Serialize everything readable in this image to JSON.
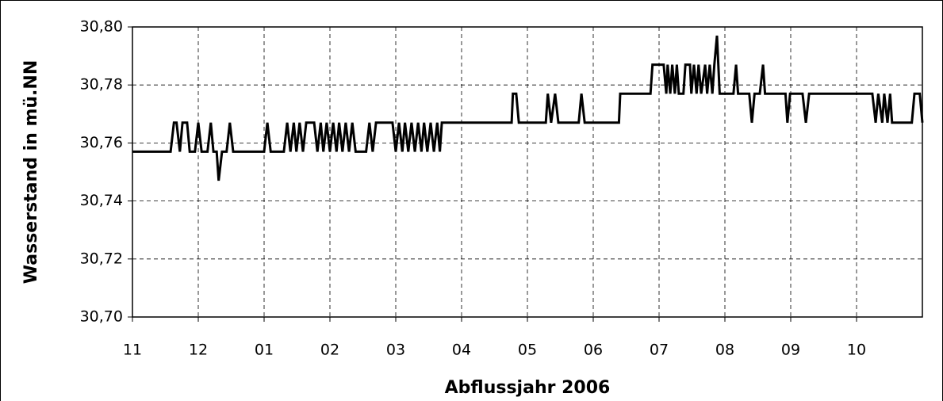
{
  "chart_data": {
    "type": "line",
    "y_label": "Wasserstand in mü.NN",
    "x_label": "Abflussjahr 2006",
    "color": "#000000",
    "grid": true,
    "xlim": [
      0,
      12
    ],
    "xticks": [
      {
        "value": 0,
        "label": "11"
      },
      {
        "value": 1,
        "label": "12"
      },
      {
        "value": 2,
        "label": "01"
      },
      {
        "value": 3,
        "label": "02"
      },
      {
        "value": 4,
        "label": "03"
      },
      {
        "value": 5,
        "label": "04"
      },
      {
        "value": 6,
        "label": "05"
      },
      {
        "value": 7,
        "label": "06"
      },
      {
        "value": 8,
        "label": "07"
      },
      {
        "value": 9,
        "label": "08"
      },
      {
        "value": 10,
        "label": "09"
      },
      {
        "value": 11,
        "label": "10"
      }
    ],
    "ylim": [
      30.7,
      30.8
    ],
    "yticks": [
      {
        "value": 30.7,
        "label": "30,70"
      },
      {
        "value": 30.72,
        "label": "30,72"
      },
      {
        "value": 30.74,
        "label": "30,74"
      },
      {
        "value": 30.76,
        "label": "30,76"
      },
      {
        "value": 30.78,
        "label": "30,78"
      },
      {
        "value": 30.8,
        "label": "30,80"
      }
    ],
    "x": [
      0,
      0.58,
      0.63,
      0.67,
      0.72,
      0.76,
      0.83,
      0.87,
      0.95,
      1.0,
      1.05,
      1.14,
      1.19,
      1.23,
      1.28,
      1.31,
      1.36,
      1.43,
      1.48,
      1.53,
      2.0,
      2.05,
      2.1,
      2.3,
      2.35,
      2.4,
      2.45,
      2.49,
      2.54,
      2.59,
      2.64,
      2.76,
      2.81,
      2.86,
      2.9,
      2.95,
      3.0,
      3.05,
      3.1,
      3.14,
      3.19,
      3.24,
      3.29,
      3.34,
      3.39,
      3.55,
      3.6,
      3.65,
      3.7,
      3.75,
      3.95,
      4.0,
      4.05,
      4.1,
      4.14,
      4.19,
      4.24,
      4.29,
      4.34,
      4.39,
      4.43,
      4.48,
      4.53,
      4.58,
      4.63,
      4.67,
      4.7,
      5.76,
      5.78,
      5.83,
      5.87,
      6.28,
      6.31,
      6.36,
      6.42,
      6.47,
      6.78,
      6.82,
      6.87,
      7.39,
      7.41,
      7.87,
      7.9,
      8.07,
      8.11,
      8.13,
      8.17,
      8.2,
      8.24,
      8.27,
      8.3,
      8.37,
      8.4,
      8.47,
      8.49,
      8.53,
      8.57,
      8.6,
      8.64,
      8.7,
      8.73,
      8.77,
      8.81,
      8.84,
      8.88,
      8.92,
      9.13,
      9.17,
      9.2,
      9.37,
      9.41,
      9.45,
      9.53,
      9.58,
      9.61,
      9.92,
      9.95,
      9.99,
      10.18,
      10.23,
      10.28,
      11.24,
      11.29,
      11.33,
      11.39,
      11.42,
      11.47,
      11.51,
      11.54,
      11.84,
      11.88,
      11.96,
      12.0
    ],
    "values": [
      30.757,
      30.757,
      30.767,
      30.767,
      30.757,
      30.767,
      30.767,
      30.757,
      30.757,
      30.767,
      30.757,
      30.757,
      30.767,
      30.757,
      30.757,
      30.747,
      30.757,
      30.757,
      30.767,
      30.757,
      30.757,
      30.767,
      30.757,
      30.757,
      30.767,
      30.757,
      30.767,
      30.757,
      30.767,
      30.757,
      30.767,
      30.767,
      30.757,
      30.767,
      30.757,
      30.767,
      30.757,
      30.767,
      30.757,
      30.767,
      30.757,
      30.767,
      30.757,
      30.767,
      30.757,
      30.757,
      30.767,
      30.757,
      30.767,
      30.767,
      30.767,
      30.757,
      30.767,
      30.757,
      30.767,
      30.757,
      30.767,
      30.757,
      30.767,
      30.757,
      30.767,
      30.757,
      30.767,
      30.757,
      30.767,
      30.757,
      30.767,
      30.767,
      30.777,
      30.777,
      30.767,
      30.767,
      30.777,
      30.767,
      30.777,
      30.767,
      30.767,
      30.777,
      30.767,
      30.767,
      30.777,
      30.777,
      30.787,
      30.787,
      30.777,
      30.787,
      30.777,
      30.787,
      30.777,
      30.787,
      30.777,
      30.777,
      30.787,
      30.787,
      30.777,
      30.787,
      30.777,
      30.787,
      30.777,
      30.787,
      30.777,
      30.787,
      30.777,
      30.787,
      30.797,
      30.777,
      30.777,
      30.787,
      30.777,
      30.777,
      30.767,
      30.777,
      30.777,
      30.787,
      30.777,
      30.777,
      30.767,
      30.777,
      30.777,
      30.767,
      30.777,
      30.777,
      30.767,
      30.777,
      30.767,
      30.777,
      30.767,
      30.777,
      30.767,
      30.767,
      30.777,
      30.777,
      30.767
    ]
  }
}
